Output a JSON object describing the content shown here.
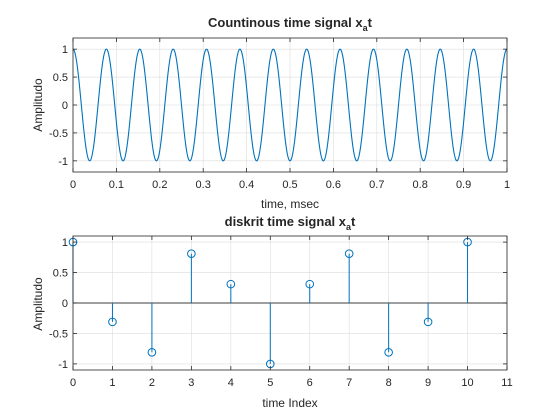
{
  "figure": {
    "background": "#ffffff",
    "line_color": "#0072BD",
    "grid_color": "#dcdcdc"
  },
  "chart_data": [
    {
      "type": "line",
      "title": "Countinous time signal x",
      "title_subscript": "a",
      "title_suffix": "t",
      "xlabel": "time, msec",
      "ylabel": "Amplitudo",
      "xlim": [
        0,
        1
      ],
      "ylim": [
        -1.2,
        1.2
      ],
      "grid": true,
      "xticks": [
        0,
        0.1,
        0.2,
        0.3,
        0.4,
        0.5,
        0.6,
        0.7,
        0.8,
        0.9,
        1
      ],
      "xtick_labels": [
        "0",
        "0.1",
        "0.2",
        "0.3",
        "0.4",
        "0.5",
        "0.6",
        "0.7",
        "0.8",
        "0.9",
        "1"
      ],
      "yticks": [
        -1,
        -0.5,
        0,
        0.5,
        1
      ],
      "ytick_labels": [
        "-1",
        "-0.5",
        "0",
        "0.5",
        "1"
      ],
      "series": [
        {
          "function": "cos",
          "amplitude": 1,
          "cycles": 13,
          "color": "#0072BD"
        }
      ]
    },
    {
      "type": "stem",
      "title": "diskrit time signal x",
      "title_subscript": "a",
      "title_suffix": "t",
      "xlabel": "time Index",
      "ylabel": "Amplitudo",
      "xlim": [
        0,
        11
      ],
      "ylim": [
        -1.1,
        1.1
      ],
      "grid": true,
      "xticks": [
        0,
        1,
        2,
        3,
        4,
        5,
        6,
        7,
        8,
        9,
        10,
        11
      ],
      "xtick_labels": [
        "0",
        "1",
        "2",
        "3",
        "4",
        "5",
        "6",
        "7",
        "8",
        "9",
        "10",
        "11"
      ],
      "yticks": [
        -1,
        -0.5,
        0,
        0.5,
        1
      ],
      "ytick_labels": [
        "-1",
        "-0.5",
        "0",
        "0.5",
        "1"
      ],
      "series": [
        {
          "x": [
            0,
            1,
            2,
            3,
            4,
            5,
            6,
            7,
            8,
            9,
            10
          ],
          "values": [
            1,
            -0.31,
            -0.81,
            0.81,
            0.31,
            -1,
            0.31,
            0.81,
            -0.81,
            -0.31,
            1
          ],
          "color": "#0072BD"
        }
      ]
    }
  ]
}
